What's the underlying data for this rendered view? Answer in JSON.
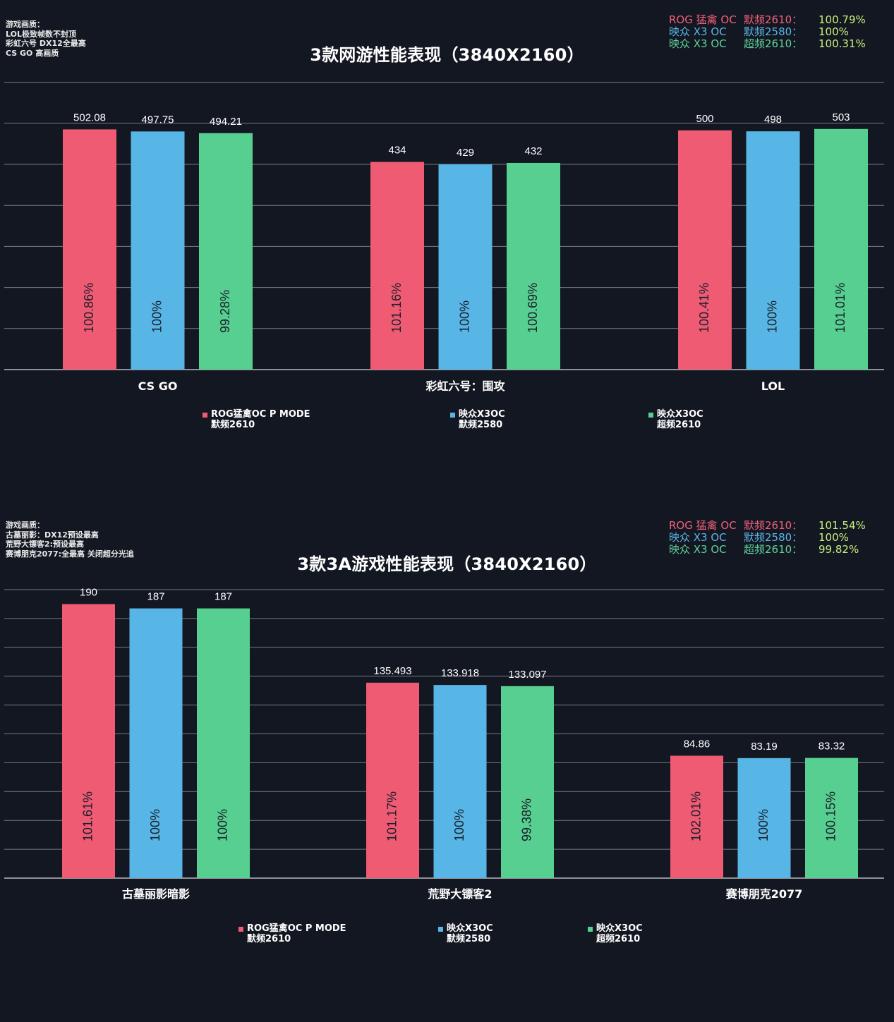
{
  "chart_data": [
    {
      "type": "bar",
      "title": "3款网游性能表现（3840X2160）",
      "notes": [
        "游戏画质：",
        "LOL极致帧数不封顶",
        "彩虹六号 DX12全最高",
        "CS GO 高画质"
      ],
      "summary": [
        {
          "gpu": "ROG 猛禽 OC",
          "clock": "默频2610：",
          "pct": "100.79%",
          "color": "#f0607a"
        },
        {
          "gpu": "映众 X3 OC",
          "clock": "默频2580：",
          "pct": "100%",
          "color": "#5bb6e6"
        },
        {
          "gpu": "映众 X3 OC",
          "clock": "超频2610：",
          "pct": "100.31%",
          "color": "#5fd39a"
        }
      ],
      "summary_pct_color": "#c8f07a",
      "categories": [
        "CS GO",
        "彩虹六号：围攻",
        "LOL"
      ],
      "series": [
        {
          "name": "ROG猛禽OC P MODE 默频2610",
          "name_lines": [
            "ROG猛禽OC P MODE",
            "默频2610"
          ],
          "color": "#ee5b73",
          "values": [
            502.08,
            434,
            500
          ],
          "labels": [
            "502.08",
            "434",
            "500"
          ],
          "pct": [
            "100.86%",
            "101.16%",
            "100.41%"
          ]
        },
        {
          "name": "映众X3OC 默频2580",
          "name_lines": [
            "映众X3OC",
            "默频2580"
          ],
          "color": "#58b6e6",
          "values": [
            497.75,
            429,
            498
          ],
          "labels": [
            "497.75",
            "429",
            "498"
          ],
          "pct": [
            "100%",
            "100%",
            "100%"
          ]
        },
        {
          "name": "映众X3OC 超频2610",
          "name_lines": [
            "映众X3OC",
            "超频2610"
          ],
          "color": "#57cf90",
          "values": [
            494.21,
            432,
            503
          ],
          "labels": [
            "494.21",
            "432",
            "503"
          ],
          "pct": [
            "99.28%",
            "100.69%",
            "101.01%"
          ]
        }
      ],
      "ylim": [
        0,
        600
      ],
      "grid": true,
      "legend": "bottom"
    },
    {
      "type": "bar",
      "title": "3款3A游戏性能表现（3840X2160）",
      "notes": [
        "游戏画质：",
        "古墓丽影：DX12预设最高",
        "荒野大镖客2:预设最高",
        "赛博朋克2077:全最高 关闭超分光追"
      ],
      "summary": [
        {
          "gpu": "ROG 猛禽 OC",
          "clock": "默频2610：",
          "pct": "101.54%",
          "color": "#f0607a"
        },
        {
          "gpu": "映众 X3 OC",
          "clock": "默频2580：",
          "pct": "100%",
          "color": "#5bb6e6"
        },
        {
          "gpu": "映众 X3 OC",
          "clock": "超频2610：",
          "pct": "99.82%",
          "color": "#5fd39a"
        }
      ],
      "summary_pct_color": "#c8f07a",
      "categories": [
        "古墓丽影暗影",
        "荒野大镖客2",
        "赛博朋克2077"
      ],
      "series": [
        {
          "name": "ROG猛禽OC P MODE 默频2610",
          "name_lines": [
            "ROG猛禽OC P MODE",
            "默频2610"
          ],
          "color": "#ee5b73",
          "values": [
            190,
            135.493,
            84.86
          ],
          "labels": [
            "190",
            "135.493",
            "84.86"
          ],
          "pct": [
            "101.61%",
            "101.17%",
            "102.01%"
          ]
        },
        {
          "name": "映众X3OC 默频2580",
          "name_lines": [
            "映众X3OC",
            "默频2580"
          ],
          "color": "#58b6e6",
          "values": [
            187,
            133.918,
            83.19
          ],
          "labels": [
            "187",
            "133.918",
            "83.19"
          ],
          "pct": [
            "100%",
            "100%",
            "100%"
          ]
        },
        {
          "name": "映众X3OC 超频2610",
          "name_lines": [
            "映众X3OC",
            "超频2610"
          ],
          "color": "#57cf90",
          "values": [
            187,
            133.097,
            83.32
          ],
          "labels": [
            "187",
            "133.097",
            "83.32"
          ],
          "pct": [
            "100%",
            "99.38%",
            "100.15%"
          ]
        }
      ],
      "ylim": [
        0,
        200
      ],
      "grid": true,
      "legend": "bottom"
    }
  ]
}
